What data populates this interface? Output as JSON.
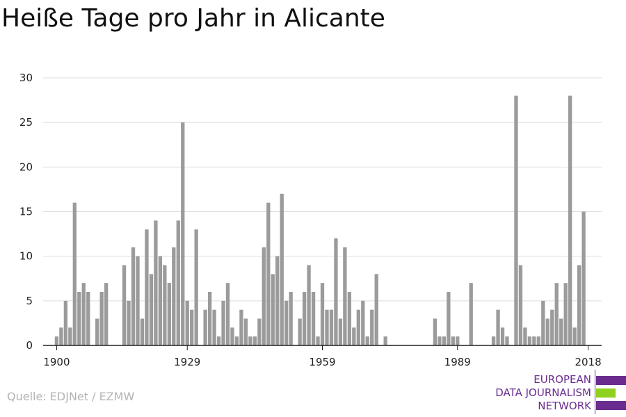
{
  "chart_data": {
    "type": "bar",
    "title": "Heiße Tage pro Jahr in Alicante",
    "xlabel": "",
    "ylabel": "",
    "source": "Quelle: EDJNet / EZMW",
    "xlim": [
      1897,
      2021
    ],
    "ylim": [
      0,
      30
    ],
    "yticks": [
      0,
      5,
      10,
      15,
      20,
      25,
      30
    ],
    "xticks": [
      1900,
      1929,
      1959,
      1989,
      2018
    ],
    "grid": true,
    "legend": "none",
    "bar_color": "#9b9b9b",
    "x": [
      1900,
      1901,
      1902,
      1903,
      1904,
      1905,
      1906,
      1907,
      1908,
      1909,
      1910,
      1911,
      1912,
      1913,
      1914,
      1915,
      1916,
      1917,
      1918,
      1919,
      1920,
      1921,
      1922,
      1923,
      1924,
      1925,
      1926,
      1927,
      1928,
      1929,
      1930,
      1931,
      1932,
      1933,
      1934,
      1935,
      1936,
      1937,
      1938,
      1939,
      1940,
      1941,
      1942,
      1943,
      1944,
      1945,
      1946,
      1947,
      1948,
      1949,
      1950,
      1951,
      1952,
      1953,
      1954,
      1955,
      1956,
      1957,
      1958,
      1959,
      1960,
      1961,
      1962,
      1963,
      1964,
      1965,
      1966,
      1967,
      1968,
      1969,
      1970,
      1971,
      1972,
      1973,
      1974,
      1975,
      1976,
      1977,
      1978,
      1979,
      1980,
      1981,
      1982,
      1983,
      1984,
      1985,
      1986,
      1987,
      1988,
      1989,
      1990,
      1991,
      1992,
      1993,
      1994,
      1995,
      1996,
      1997,
      1998,
      1999,
      2000,
      2001,
      2002,
      2003,
      2004,
      2005,
      2006,
      2007,
      2008,
      2009,
      2010,
      2011,
      2012,
      2013,
      2014,
      2015,
      2016,
      2017,
      2018
    ],
    "values": [
      1,
      2,
      5,
      2,
      16,
      6,
      7,
      6,
      0,
      3,
      6,
      7,
      0,
      0,
      0,
      9,
      5,
      11,
      10,
      3,
      13,
      8,
      14,
      10,
      9,
      7,
      11,
      14,
      25,
      5,
      4,
      13,
      0,
      4,
      6,
      4,
      1,
      5,
      7,
      2,
      1,
      4,
      3,
      1,
      1,
      3,
      11,
      16,
      8,
      10,
      17,
      5,
      6,
      0,
      3,
      6,
      9,
      6,
      1,
      7,
      4,
      4,
      12,
      3,
      11,
      6,
      2,
      4,
      5,
      1,
      4,
      8,
      0,
      1,
      0,
      0,
      0,
      0,
      0,
      0,
      0,
      0,
      0,
      0,
      3,
      1,
      1,
      6,
      1,
      1,
      0,
      0,
      7,
      0,
      0,
      0,
      0,
      1,
      4,
      2,
      1,
      0,
      28,
      9,
      2,
      1,
      1,
      1,
      5,
      3,
      4,
      7,
      3,
      7,
      28,
      2,
      9,
      15,
      0
    ]
  },
  "logo": {
    "lines": [
      "EUROPEAN",
      "DATA JOURNALISM",
      "NETWORK"
    ],
    "colors": [
      "#6a2d8f",
      "#8fd11f",
      "#6a2d8f"
    ]
  }
}
